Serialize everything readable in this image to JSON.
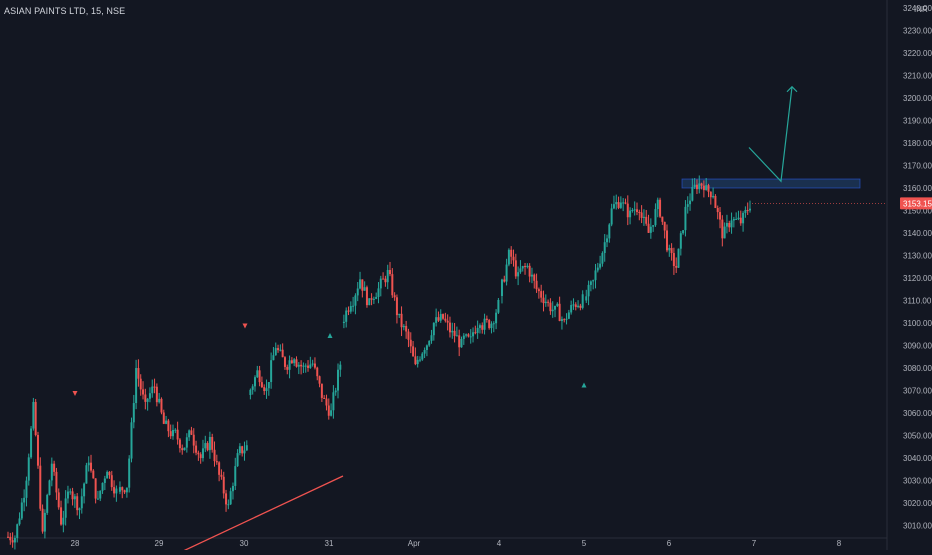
{
  "header": {
    "symbol_title": "ASIAN PAINTS LTD, 15, NSE"
  },
  "colors": {
    "background": "#131722",
    "up": "#26a69a",
    "down": "#ef5350",
    "grid": "#1e222d",
    "axis_text": "#b2b5be",
    "zone_fill": "#1e3a5f",
    "zone_border": "#2962ff",
    "arrow": "#26a69a",
    "trendline": "#ef5350",
    "last_price_bg": "#ef5350"
  },
  "chart_data": {
    "type": "candlestick",
    "currency_label": "INR",
    "last_price_label": "3153.15",
    "ylim": [
      3008,
      3240
    ],
    "y_ticks": [
      "3240.00",
      "3230.00",
      "3220.00",
      "3210.00",
      "3200.00",
      "3190.00",
      "3180.00",
      "3170.00",
      "3160.00",
      "3150.00",
      "3140.00",
      "3130.00",
      "3120.00",
      "3110.00",
      "3100.00",
      "3090.00",
      "3080.00",
      "3070.00",
      "3060.00",
      "3050.00",
      "3040.00",
      "3030.00",
      "3020.00",
      "3010.00"
    ],
    "x_labels": [
      "28",
      "29",
      "30",
      "31",
      "Apr",
      "4",
      "5",
      "6",
      "7",
      "8"
    ],
    "grid": false,
    "segments": [
      {
        "start": 3005,
        "path": [
          3005,
          3025,
          3062,
          3005,
          3038,
          3012,
          3028,
          3018,
          3040,
          3020,
          3036,
          3025
        ]
      },
      {
        "start": 3025,
        "path": [
          3028,
          3080,
          3062,
          3072,
          3055,
          3050,
          3045,
          3052,
          3040,
          3048,
          3032,
          3018,
          3040,
          3045
        ]
      },
      {
        "start": 3068,
        "path": [
          3078,
          3070,
          3090,
          3082,
          3086,
          3080,
          3082,
          3068,
          3060,
          3082
        ]
      },
      {
        "start": 3100,
        "path": [
          3110,
          3120,
          3108,
          3115,
          3122,
          3105,
          3095,
          3080,
          3090,
          3100,
          3102,
          3095,
          3090,
          3092,
          3102,
          3100,
          3108
        ]
      },
      {
        "start": 3112,
        "path": [
          3130,
          3120,
          3125,
          3115,
          3110,
          3105,
          3100,
          3108,
          3110
        ]
      },
      {
        "start": 3110,
        "path": [
          3118,
          3132,
          3150,
          3155,
          3148,
          3152,
          3140,
          3152,
          3135,
          3125,
          3150,
          3160,
          3162,
          3158,
          3140,
          3147,
          3145,
          3153
        ]
      }
    ],
    "day_starts": [
      0,
      12,
      26,
      36,
      53,
      62
    ],
    "annotations": {
      "resistance_zone": [
        3160,
        3164
      ],
      "projection_path": [
        3178,
        3163,
        3205
      ],
      "trendline": [
        2998,
        3032
      ],
      "up_markers": [
        3100,
        3078
      ],
      "down_markers": [
        3064,
        3094
      ]
    }
  }
}
